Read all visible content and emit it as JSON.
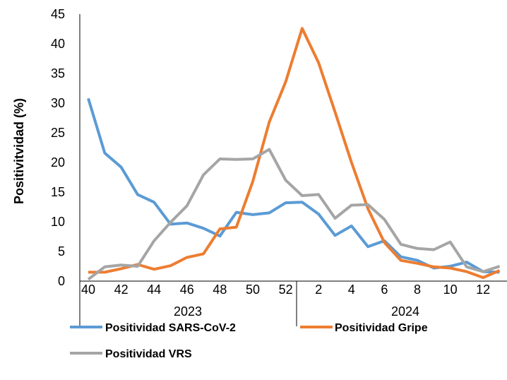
{
  "chart_data": {
    "type": "line",
    "title": "",
    "xlabel": "",
    "ylabel": "Positivitvidad (%)",
    "ylim": [
      0,
      45
    ],
    "y_ticks": [
      "0",
      "5",
      "10",
      "15",
      "20",
      "25",
      "30",
      "35",
      "40",
      "45"
    ],
    "x_tick_labels": [
      "40",
      "42",
      "44",
      "46",
      "48",
      "50",
      "52",
      "2",
      "4",
      "6",
      "8",
      "10",
      "12"
    ],
    "year_groups": [
      "2023",
      "2024"
    ],
    "weeks": [
      40,
      41,
      42,
      43,
      44,
      45,
      46,
      47,
      48,
      49,
      50,
      51,
      52,
      1,
      2,
      3,
      4,
      5,
      6,
      7,
      8,
      9,
      10,
      11,
      12,
      13
    ],
    "grid": false,
    "legend_position": "bottom",
    "series": [
      {
        "name": "Positividad SARS-CoV-2",
        "color": "#5b9bd5",
        "values": [
          30.8,
          21.6,
          19.2,
          14.6,
          13.3,
          9.6,
          9.8,
          8.9,
          7.6,
          11.6,
          11.2,
          11.5,
          13.2,
          13.3,
          11.3,
          7.7,
          9.3,
          5.8,
          6.8,
          4.1,
          3.5,
          2.2,
          2.5,
          3.2,
          1.6,
          1.5
        ]
      },
      {
        "name": "Positividad Gripe",
        "color": "#ed7d31",
        "values": [
          1.5,
          1.5,
          2.1,
          2.8,
          2.0,
          2.6,
          4.0,
          4.6,
          8.8,
          9.1,
          16.8,
          26.8,
          33.6,
          42.6,
          36.8,
          28.5,
          20.0,
          12.2,
          6.5,
          3.5,
          3.0,
          2.4,
          2.2,
          1.6,
          0.6,
          1.8
        ]
      },
      {
        "name": "Positividad VRS",
        "color": "#a5a5a5",
        "values": [
          0.3,
          2.4,
          2.7,
          2.5,
          6.8,
          9.9,
          12.7,
          17.9,
          20.6,
          20.5,
          20.6,
          22.2,
          17.0,
          14.4,
          14.6,
          10.6,
          12.8,
          12.9,
          10.4,
          6.2,
          5.5,
          5.3,
          6.6,
          2.4,
          1.6,
          2.5
        ]
      }
    ]
  }
}
